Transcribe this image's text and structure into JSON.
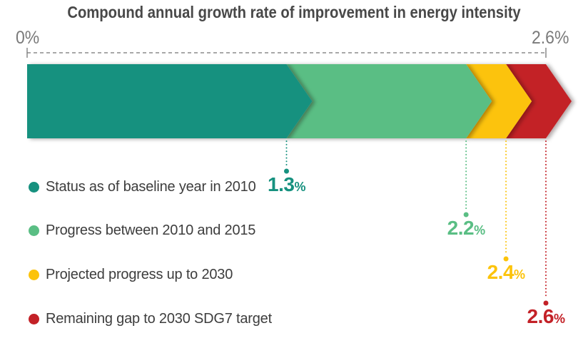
{
  "chart_data": {
    "type": "bar",
    "variant": "chevron-stacked-progress",
    "title": "Compound annual growth rate of improvement in energy intensity",
    "unit": "%",
    "axis": {
      "min": 0,
      "max": 2.6,
      "min_label": "0%",
      "max_label": "2.6%",
      "line_style": "dashed",
      "color": "#757575"
    },
    "segments": [
      {
        "label": "Status as of baseline year in 2010",
        "value": 1.3,
        "value_label": "1.3",
        "color": "#16917f"
      },
      {
        "label": "Progress between 2010 and 2015",
        "value": 2.2,
        "value_label": "2.2",
        "color": "#5abe84"
      },
      {
        "label": "Projected progress up to 2030",
        "value": 2.4,
        "value_label": "2.4",
        "color": "#fcc30b"
      },
      {
        "label": "Remaining gap to 2030 SDG7 target",
        "value": 2.6,
        "value_label": "2.6",
        "color": "#c32127"
      }
    ],
    "legend_position": "bottom-left",
    "grid": false,
    "colors": {
      "title": "#484848",
      "label": "#3d3d3d"
    }
  }
}
